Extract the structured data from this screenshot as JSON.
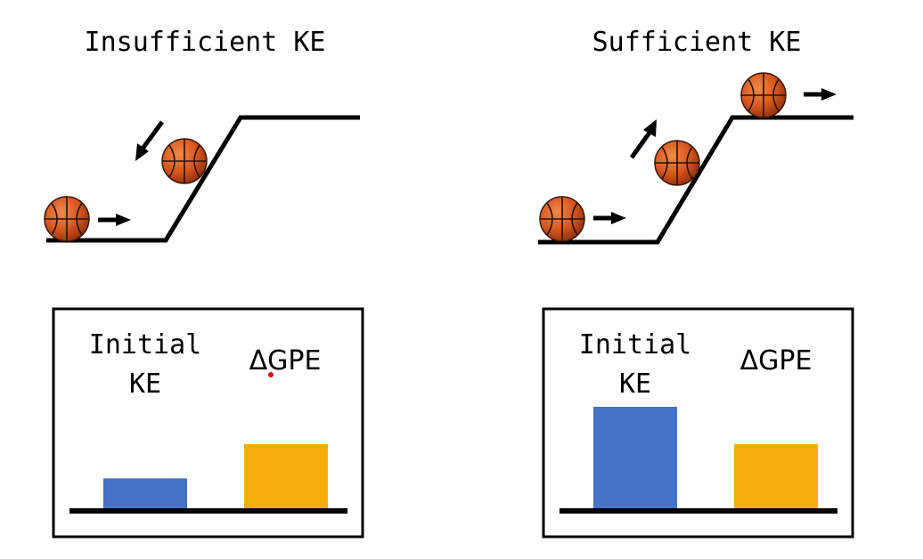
{
  "left": {
    "title": "Insufficient KE",
    "chart": {
      "label_initial_line1": "Initial",
      "label_initial_line2": "KE",
      "label_gpe": "ΔGPE",
      "initial_ke": 0.28,
      "delta_gpe": 0.6
    }
  },
  "right": {
    "title": "Sufficient KE",
    "chart": {
      "label_initial_line1": "Initial",
      "label_initial_line2": "KE",
      "label_gpe": "ΔGPE",
      "initial_ke": 0.95,
      "delta_gpe": 0.6
    }
  },
  "colors": {
    "initial_ke": "#4472c4",
    "delta_gpe": "#f7ac0d",
    "ball": "#d9581f",
    "annotation_dot": "#e31010"
  }
}
